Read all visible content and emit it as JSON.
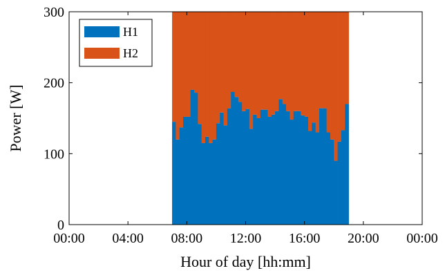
{
  "chart_data": {
    "type": "bar",
    "stacked": true,
    "xlabel": "Hour of day [hh:mm]",
    "ylabel": "Power [W]",
    "xlim": [
      0,
      24
    ],
    "ylim": [
      0,
      300
    ],
    "xticks": [
      {
        "value": 0,
        "label": "00:00"
      },
      {
        "value": 4,
        "label": "04:00"
      },
      {
        "value": 8,
        "label": "08:00"
      },
      {
        "value": 12,
        "label": "12:00"
      },
      {
        "value": 16,
        "label": "16:00"
      },
      {
        "value": 20,
        "label": "20:00"
      },
      {
        "value": 24,
        "label": "00:00"
      }
    ],
    "yticks": [
      {
        "value": 0,
        "label": "0"
      },
      {
        "value": 100,
        "label": "100"
      },
      {
        "value": 200,
        "label": "200"
      },
      {
        "value": 300,
        "label": "300"
      }
    ],
    "legend_position": "top-left",
    "grid": false,
    "bin_hours": 0.25,
    "series": [
      {
        "name": "H1",
        "color": "#0072bd",
        "start_hours": [
          7.0,
          7.25,
          7.5,
          7.75,
          8.0,
          8.25,
          8.5,
          8.75,
          9.0,
          9.25,
          9.5,
          9.75,
          10.0,
          10.25,
          10.5,
          10.75,
          11.0,
          11.25,
          11.5,
          11.75,
          12.0,
          12.25,
          12.5,
          12.75,
          13.0,
          13.25,
          13.5,
          13.75,
          14.0,
          14.25,
          14.5,
          14.75,
          15.0,
          15.25,
          15.5,
          15.75,
          16.0,
          16.25,
          16.5,
          16.75,
          17.0,
          17.25,
          17.5,
          17.75,
          18.0,
          18.25,
          18.5,
          18.75
        ],
        "values": [
          145,
          120,
          137,
          152,
          152,
          190,
          186,
          142,
          115,
          124,
          115,
          120,
          143,
          158,
          140,
          164,
          187,
          180,
          173,
          160,
          163,
          135,
          155,
          150,
          162,
          162,
          152,
          155,
          160,
          177,
          170,
          160,
          148,
          160,
          160,
          154,
          152,
          132,
          144,
          130,
          164,
          164,
          130,
          120,
          90,
          117,
          133,
          170
        ]
      },
      {
        "name": "H2",
        "color": "#d95319",
        "start_hours": [
          7.0,
          7.25,
          7.5,
          7.75,
          8.0,
          8.25,
          8.5,
          8.75,
          9.0,
          9.25,
          9.5,
          9.75,
          10.0,
          10.25,
          10.5,
          10.75,
          11.0,
          11.25,
          11.5,
          11.75,
          12.0,
          12.25,
          12.5,
          12.75,
          13.0,
          13.25,
          13.5,
          13.75,
          14.0,
          14.25,
          14.5,
          14.75,
          15.0,
          15.25,
          15.5,
          15.75,
          16.0,
          16.25,
          16.5,
          16.75,
          17.0,
          17.25,
          17.5,
          17.75,
          18.0,
          18.25,
          18.5,
          18.75
        ],
        "values": [
          155,
          180,
          163,
          148,
          148,
          110,
          114,
          158,
          185,
          176,
          185,
          180,
          157,
          142,
          160,
          136,
          113,
          120,
          127,
          140,
          137,
          165,
          145,
          150,
          138,
          138,
          148,
          145,
          140,
          123,
          130,
          140,
          152,
          140,
          140,
          146,
          148,
          168,
          156,
          170,
          136,
          136,
          170,
          180,
          210,
          183,
          167,
          130
        ]
      }
    ]
  }
}
